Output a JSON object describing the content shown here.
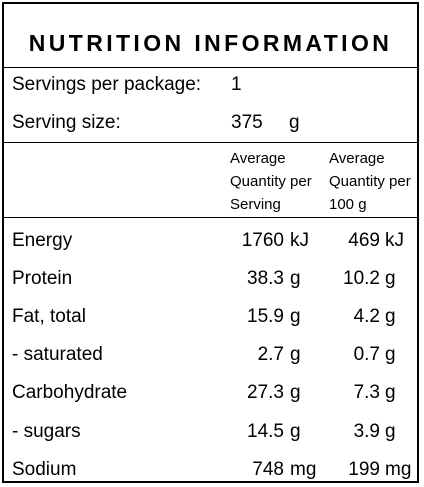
{
  "title": "NUTRITION INFORMATION",
  "servings": {
    "label": "Servings per package:",
    "value": "1"
  },
  "serving_size": {
    "label": "Serving size:",
    "value": "375",
    "unit": "g"
  },
  "headers": {
    "per_serving": [
      "Average",
      "Quantity per",
      "Serving"
    ],
    "per_100g": [
      "Average",
      "Quantity per",
      "100 g"
    ]
  },
  "rows": [
    {
      "name": "Energy",
      "serving": "1760",
      "serving_unit": "kJ",
      "per100": "469",
      "per100_unit": "kJ"
    },
    {
      "name": "Protein",
      "serving": "38.3",
      "serving_unit": "g",
      "per100": "10.2",
      "per100_unit": "g"
    },
    {
      "name": "Fat, total",
      "serving": "15.9",
      "serving_unit": "g",
      "per100": "4.2",
      "per100_unit": "g"
    },
    {
      "name": "- saturated",
      "serving": "2.7",
      "serving_unit": "g",
      "per100": "0.7",
      "per100_unit": "g"
    },
    {
      "name": "Carbohydrate",
      "serving": "27.3",
      "serving_unit": "g",
      "per100": "7.3",
      "per100_unit": "g"
    },
    {
      "name": "- sugars",
      "serving": "14.5",
      "serving_unit": "g",
      "per100": "3.9",
      "per100_unit": "g"
    },
    {
      "name": "Sodium",
      "serving": "748",
      "serving_unit": "mg",
      "per100": "199",
      "per100_unit": "mg"
    }
  ]
}
